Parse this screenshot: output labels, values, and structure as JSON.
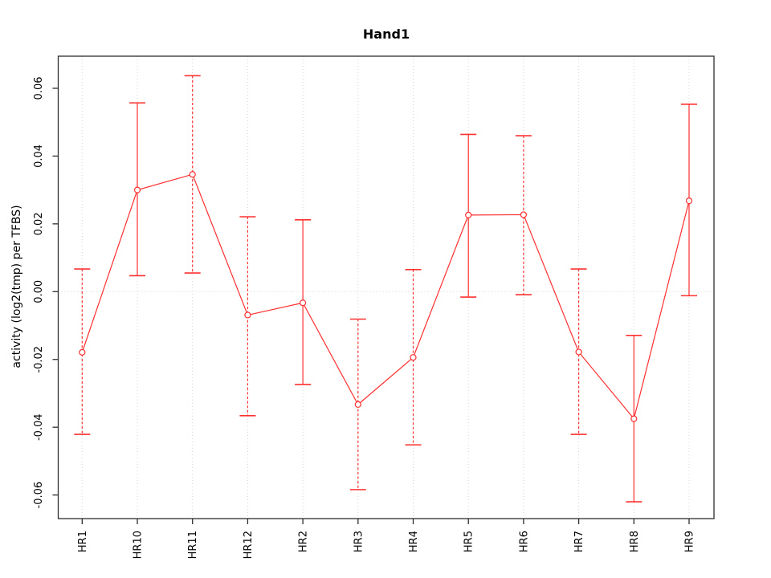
{
  "figure": {
    "title": "Hand1"
  },
  "colors": {
    "series": "#ff3030",
    "grid": "#d4d4d4",
    "zero_line": "#d4d4d4",
    "axis": "#2e2e2e",
    "text": "#000000",
    "background": "#ffffff"
  },
  "chart_data": {
    "type": "line",
    "title": "Hand1",
    "xlabel": "",
    "ylabel": "activity (log2(tmp) per TFBS)",
    "categories": [
      "HR1",
      "HR10",
      "HR11",
      "HR12",
      "HR2",
      "HR3",
      "HR4",
      "HR5",
      "HR6",
      "HR7",
      "HR8",
      "HR9"
    ],
    "series": [
      {
        "name": "activity",
        "marker": "open-circle",
        "values": [
          -0.0179,
          0.03,
          0.0346,
          -0.0069,
          -0.0033,
          -0.0333,
          -0.0194,
          0.0226,
          0.0227,
          -0.0178,
          -0.0375,
          0.0268
        ],
        "ci_lower": [
          -0.0421,
          0.0047,
          0.0055,
          -0.0366,
          -0.0274,
          -0.0584,
          -0.0452,
          -0.0016,
          -0.0009,
          -0.0421,
          -0.062,
          -0.0012
        ],
        "ci_upper": [
          0.0067,
          0.0557,
          0.0637,
          0.0221,
          0.0212,
          -0.0081,
          0.0065,
          0.0464,
          0.046,
          0.0067,
          -0.0129,
          0.0553
        ],
        "error_bar_styles": [
          "dashed",
          "solid",
          "dashed",
          "dashed",
          "solid",
          "dashed",
          "dashed",
          "solid",
          "dashed",
          "dashed",
          "solid",
          "solid"
        ]
      }
    ],
    "yticks": {
      "values": [
        0.06,
        0.04,
        0.02,
        0.0,
        -0.02,
        -0.04,
        -0.06
      ],
      "labels": [
        "0.06",
        "0.04",
        "0.02",
        "0.00",
        "-0.02",
        "-0.04",
        "-0.06"
      ]
    },
    "ylim": [
      -0.0667,
      0.0695
    ],
    "grid": {
      "vertical": "dotted line at every category",
      "horizontal": "dotted zero line only"
    },
    "legend": "none"
  }
}
